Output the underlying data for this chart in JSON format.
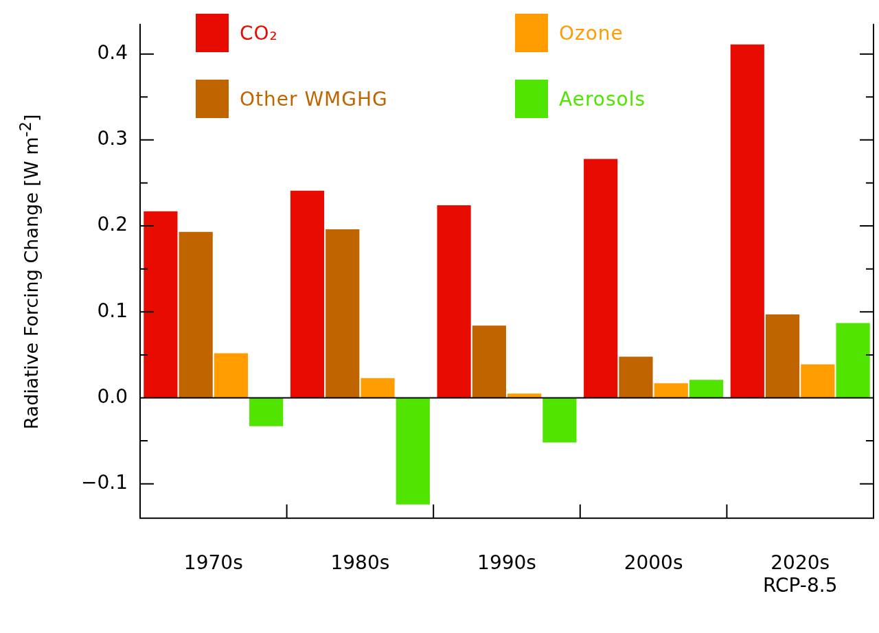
{
  "chart_data": {
    "type": "bar",
    "ylabel": "Radiative Forcing Change [W m$^{-2}$]",
    "categories": [
      "1970s",
      "1980s",
      "1990s",
      "2000s",
      "2020s\nRCP-8.5"
    ],
    "series": [
      {
        "name": "CO₂",
        "color": "#e80c00",
        "values": [
          0.217,
          0.241,
          0.224,
          0.278,
          0.411
        ]
      },
      {
        "name": "Other WMGHG",
        "color": "#c06400",
        "values": [
          0.193,
          0.196,
          0.084,
          0.048,
          0.097
        ]
      },
      {
        "name": "Ozone",
        "color": "#ff9c00",
        "values": [
          0.052,
          0.023,
          0.005,
          0.017,
          0.039
        ]
      },
      {
        "name": "Aerosols",
        "color": "#50e400",
        "values": [
          -0.033,
          -0.124,
          -0.052,
          0.021,
          0.087
        ]
      }
    ],
    "ylim": [
      -0.14,
      0.435
    ],
    "yticks": [
      {
        "value": -0.1,
        "label": "−0.1"
      },
      {
        "value": -0.05,
        "label": null
      },
      {
        "value": 0,
        "label": "0.0"
      },
      {
        "value": 0.05,
        "label": null
      },
      {
        "value": 0.1,
        "label": "0.1"
      },
      {
        "value": 0.15,
        "label": null
      },
      {
        "value": 0.2,
        "label": "0.2"
      },
      {
        "value": 0.25,
        "label": null
      },
      {
        "value": 0.3,
        "label": "0.3"
      },
      {
        "value": 0.35,
        "label": null
      },
      {
        "value": 0.4,
        "label": "0.4"
      }
    ],
    "ref_lines": [
      {
        "axis": "y",
        "value": 0
      }
    ],
    "legend": "top left",
    "grid": false
  }
}
